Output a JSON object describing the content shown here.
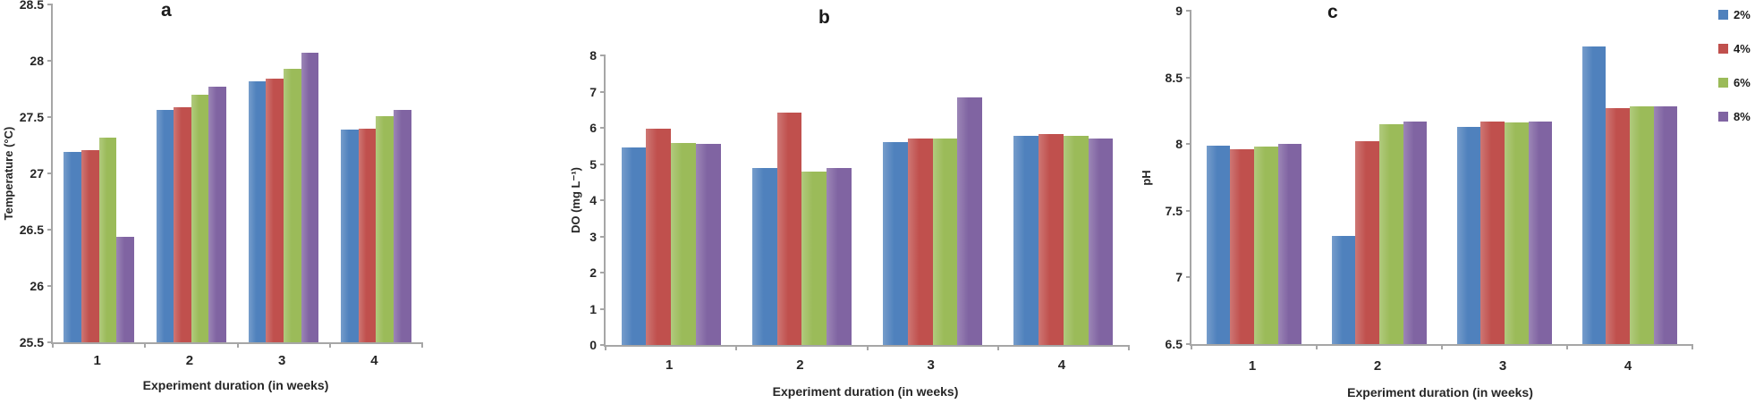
{
  "figure_title": "",
  "legend": {
    "position": "top-right",
    "items": [
      {
        "label": "2%",
        "color": "#4f81bd"
      },
      {
        "label": "4%",
        "color": "#c0504d"
      },
      {
        "label": "6%",
        "color": "#9bbb59"
      },
      {
        "label": "8%",
        "color": "#8064a2"
      }
    ]
  },
  "colors": {
    "series": [
      "#4f81bd",
      "#c0504d",
      "#9bbb59",
      "#8064a2"
    ],
    "axis": "#a6a6a6",
    "text": "#262626"
  },
  "chart_data": [
    {
      "type": "bar",
      "panel_label": "a",
      "title": "a",
      "ylabel": "Temperature (°C)",
      "xlabel": "Experiment duration (in weeks)",
      "categories": [
        "1",
        "2",
        "3",
        "4"
      ],
      "ylim": [
        25.5,
        28.5
      ],
      "ytick_step": 0.5,
      "grid": false,
      "series": [
        {
          "name": "2%",
          "values": [
            27.19,
            27.56,
            27.82,
            27.39
          ]
        },
        {
          "name": "4%",
          "values": [
            27.21,
            27.59,
            27.84,
            27.4
          ]
        },
        {
          "name": "6%",
          "values": [
            27.32,
            27.7,
            27.93,
            27.51
          ]
        },
        {
          "name": "8%",
          "values": [
            26.44,
            27.77,
            28.07,
            27.56
          ]
        }
      ]
    },
    {
      "type": "bar",
      "panel_label": "b",
      "title": "b",
      "ylabel": "DO (mg L⁻¹)",
      "xlabel": "Experiment duration (in weeks)",
      "categories": [
        "1",
        "2",
        "3",
        "4"
      ],
      "ylim": [
        0,
        8
      ],
      "ytick_step": 1,
      "grid": false,
      "series": [
        {
          "name": "2%",
          "values": [
            5.45,
            4.9,
            5.6,
            5.78
          ]
        },
        {
          "name": "4%",
          "values": [
            5.97,
            6.42,
            5.7,
            5.82
          ]
        },
        {
          "name": "6%",
          "values": [
            5.57,
            4.78,
            5.7,
            5.77
          ]
        },
        {
          "name": "8%",
          "values": [
            5.55,
            4.9,
            6.85,
            5.7
          ]
        }
      ]
    },
    {
      "type": "bar",
      "panel_label": "c",
      "title": "c",
      "ylabel": "pH",
      "xlabel": "Experiment duration (in weeks)",
      "categories": [
        "1",
        "2",
        "3",
        "4"
      ],
      "ylim": [
        6.5,
        9
      ],
      "ytick_step": 0.5,
      "grid": false,
      "series": [
        {
          "name": "2%",
          "values": [
            7.99,
            7.31,
            8.13,
            8.73
          ]
        },
        {
          "name": "4%",
          "values": [
            7.96,
            8.02,
            8.17,
            8.27
          ]
        },
        {
          "name": "6%",
          "values": [
            7.98,
            8.15,
            8.16,
            8.28
          ]
        },
        {
          "name": "8%",
          "values": [
            8.0,
            8.17,
            8.17,
            8.28
          ]
        }
      ]
    }
  ]
}
